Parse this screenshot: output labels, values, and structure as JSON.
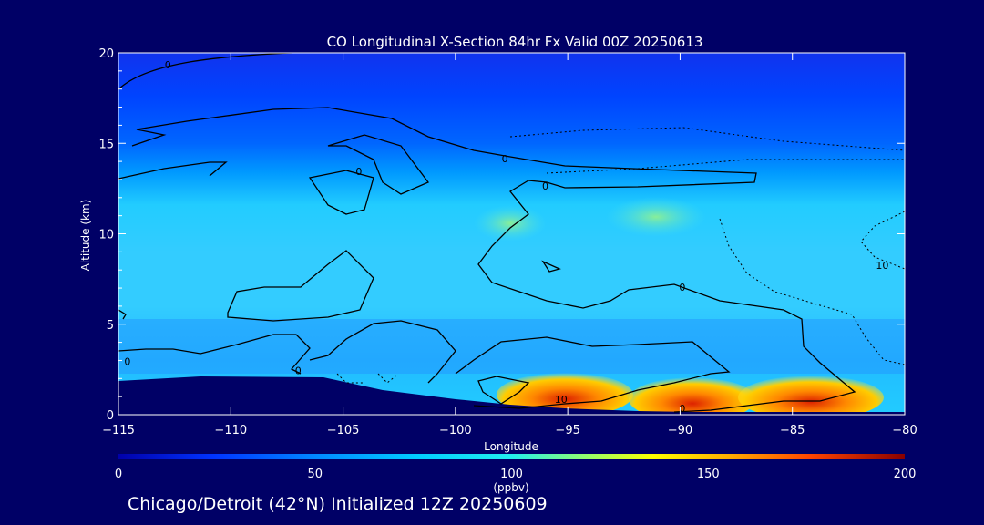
{
  "chart_data": {
    "type": "heatmap",
    "title": "CO Longitudinal X-Section 84hr  Fx Valid 00Z 20250613",
    "xlabel": "Longitude",
    "ylabel": "Altitude (km)",
    "xlim": [
      -115,
      -80
    ],
    "ylim": [
      0,
      20
    ],
    "x_ticks": [
      -115,
      -110,
      -105,
      -100,
      -95,
      -90,
      -85,
      -80
    ],
    "x_tick_labels": [
      "−115",
      "−110",
      "−105",
      "−100",
      "−95",
      "−90",
      "−85",
      "−80"
    ],
    "y_ticks": [
      0,
      5,
      10,
      15,
      20
    ],
    "y_tick_labels": [
      "0",
      "5",
      "10",
      "15",
      "20"
    ],
    "colorbar": {
      "min": 0,
      "max": 200,
      "ticks": [
        0,
        50,
        100,
        150,
        200
      ],
      "tick_labels": [
        "0",
        "50",
        "100",
        "150",
        "200"
      ],
      "units": "(ppbv)",
      "colors": [
        "#0000aa",
        "#0033ff",
        "#0088ff",
        "#00ccff",
        "#22eeee",
        "#99ff66",
        "#ffff00",
        "#ffaa00",
        "#ff4400",
        "#cc0000",
        "#880000"
      ]
    },
    "field_layers": [
      {
        "alt_min": 0,
        "alt_max": 1.5,
        "value_ppbv": 140,
        "lon_min": -100,
        "lon_max": -80
      },
      {
        "alt_min": 1.5,
        "alt_max": 8,
        "value_ppbv": 90
      },
      {
        "alt_min": 8,
        "alt_max": 12,
        "value_ppbv": 95
      },
      {
        "alt_min": 12,
        "alt_max": 14,
        "value_ppbv": 75
      },
      {
        "alt_min": 14,
        "alt_max": 17,
        "value_ppbv": 45
      },
      {
        "alt_min": 17,
        "alt_max": 20,
        "value_ppbv": 35
      }
    ],
    "contour_labels": [
      {
        "text": "0",
        "lon": -112.8,
        "alt": 19.3
      },
      {
        "text": "0",
        "lon": -104.3,
        "alt": 13.4
      },
      {
        "text": "0",
        "lon": -97.8,
        "alt": 14.1
      },
      {
        "text": "0",
        "lon": -96.0,
        "alt": 12.6
      },
      {
        "text": "0",
        "lon": -89.9,
        "alt": 7.0
      },
      {
        "text": "0",
        "lon": -114.6,
        "alt": 2.9
      },
      {
        "text": "0",
        "lon": -107.0,
        "alt": 2.4
      },
      {
        "text": "10",
        "lon": -95.3,
        "alt": 0.8
      },
      {
        "text": "0",
        "lon": -89.9,
        "alt": 0.3
      },
      {
        "text": "10",
        "lon": -81.0,
        "alt": 8.2
      }
    ]
  },
  "caption": "Chicago/Detroit (42°N) Initialized 12Z 20250609"
}
